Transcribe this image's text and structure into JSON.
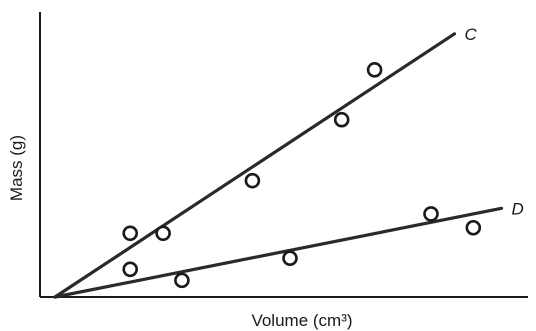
{
  "chart_data": {
    "type": "scatter",
    "xlabel": "Volume (cm³)",
    "ylabel": "Mass (g)",
    "xlim": [
      0,
      100
    ],
    "ylim": [
      0,
      100
    ],
    "grid": false,
    "legend": "none",
    "series": [
      {
        "name": "C",
        "color": "#2a2a2a",
        "points": [
          [
            16,
            23
          ],
          [
            23,
            23
          ],
          [
            42,
            42
          ],
          [
            61,
            64
          ],
          [
            68,
            82
          ]
        ],
        "fit_line": [
          [
            0,
            0
          ],
          [
            85,
            95
          ]
        ]
      },
      {
        "name": "D",
        "color": "#2a2a2a",
        "points": [
          [
            16,
            10
          ],
          [
            27,
            6
          ],
          [
            50,
            14
          ],
          [
            80,
            30
          ],
          [
            89,
            25
          ]
        ],
        "fit_line": [
          [
            0,
            0
          ],
          [
            95,
            32
          ]
        ]
      }
    ]
  }
}
